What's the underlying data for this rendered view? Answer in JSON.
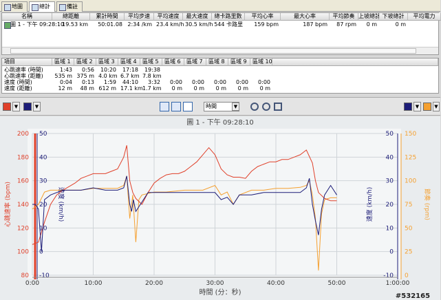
{
  "tabs": [
    "地圖",
    "總計",
    "備註"
  ],
  "summary": {
    "headers": [
      "名稱",
      "總距離",
      "累計時間",
      "平均步速",
      "平均速度",
      "最大速度",
      "總卡路里數",
      "平均心率",
      "最大心率",
      "平均節奏",
      "上坡總計",
      "下坡總計",
      "平均電力"
    ],
    "rows": [
      [
        "圖 1 - 下午 09:28:10",
        "19.53 km",
        "50:01.08",
        "2:34 /km",
        "23.4 km/h",
        "30.5 km/h",
        "544 卡路里",
        "159 bpm",
        "187 bpm",
        "87 rpm",
        "0 m",
        "0 m"
      ]
    ]
  },
  "zones": {
    "headers": [
      "項目",
      "區域 1",
      "區域 2",
      "區域 3",
      "區域 4",
      "區域 5",
      "區域 6",
      "區域 7",
      "區域 8",
      "區域 9",
      "區域 10"
    ],
    "rows": [
      [
        "心跳速率 (時間)",
        "1:43",
        "0:56",
        "10:20",
        "17:18",
        "19:38"
      ],
      [
        "心跳速率 (距離)",
        "535 m",
        "375 m",
        "4.0 km",
        "6.7 km",
        "7.8 km"
      ],
      [
        "速度 (時間)",
        "0:04",
        "0:13",
        "1:59",
        "44:10",
        "3:32",
        "0:00",
        "0:00",
        "0:00",
        "0:00",
        "0:00"
      ],
      [
        "速度 (距離)",
        "12 m",
        "48 m",
        "612 m",
        "17.1 km",
        "1.7 km",
        "0 m",
        "0 m",
        "0 m",
        "0 m",
        "0 m"
      ]
    ]
  },
  "toolbar": {
    "x_axis_mode": "時間"
  },
  "chart_data": {
    "type": "line",
    "title": "圖 1 - 下午 09:28:10",
    "x_label": "時間 (分：秒)",
    "y_label": "心跳速率 (bpm)",
    "y2_label": "速度 (km/h)",
    "y3_label": "節奏 (rpm)",
    "xlim": [
      0,
      60
    ],
    "xticks": [
      {
        "value": 0,
        "label": "0:00"
      },
      {
        "value": 10,
        "label": "10:00"
      },
      {
        "value": 20,
        "label": "20:00"
      },
      {
        "value": 30,
        "label": "30:00"
      },
      {
        "value": 40,
        "label": "40:00"
      },
      {
        "value": 50,
        "label": "50:00"
      },
      {
        "value": 60,
        "label": "1:00:00"
      }
    ],
    "ylim": [
      80,
      200
    ],
    "yticks": [
      80,
      100,
      120,
      140,
      160,
      180,
      200
    ],
    "y2lim": [
      -10,
      50
    ],
    "y2ticks": [
      -10,
      0,
      10,
      20,
      30,
      40,
      50
    ],
    "y3lim": [
      0,
      150
    ],
    "y3ticks": [
      0,
      25,
      50,
      75,
      100,
      125,
      150
    ],
    "grid": true,
    "series": [
      {
        "name": "心跳速率",
        "color": "#e0402a",
        "axis": "y",
        "x": [
          0,
          1,
          2,
          3,
          4,
          5,
          6,
          7,
          8,
          9,
          10,
          11,
          12,
          13,
          14,
          15,
          15.5,
          16,
          16.5,
          17,
          18,
          19,
          20,
          21,
          22,
          23,
          24,
          25,
          26,
          27,
          28,
          29,
          30,
          31,
          32,
          33,
          34,
          35,
          36,
          37,
          38,
          39,
          40,
          41,
          42,
          43,
          44,
          45,
          46,
          46.5,
          47,
          48,
          49,
          50
        ],
        "values": [
          106,
          108,
          125,
          140,
          148,
          152,
          155,
          158,
          162,
          164,
          166,
          166,
          166,
          168,
          170,
          180,
          190,
          160,
          150,
          145,
          140,
          150,
          158,
          162,
          165,
          166,
          166,
          168,
          172,
          176,
          182,
          188,
          182,
          170,
          165,
          163,
          163,
          162,
          168,
          172,
          174,
          176,
          176,
          178,
          178,
          180,
          182,
          186,
          175,
          160,
          150,
          145,
          143,
          143
        ]
      },
      {
        "name": "速度",
        "color": "#1c1c78",
        "axis": "y2",
        "x": [
          0,
          0.5,
          1,
          1.5,
          2,
          3,
          5,
          8,
          10,
          12,
          14,
          15,
          15.5,
          16,
          16.3,
          16.6,
          17,
          18,
          19,
          20,
          22,
          25,
          28,
          29,
          30,
          31,
          32,
          33,
          34,
          36,
          38,
          40,
          42,
          44,
          45,
          45.5,
          46,
          46.5,
          47,
          47.5,
          48,
          49,
          50
        ],
        "values": [
          20,
          20,
          18,
          0,
          22,
          24,
          26,
          26,
          27,
          26,
          26,
          27,
          32,
          20,
          17,
          22,
          17,
          21,
          25,
          25,
          25,
          25,
          25,
          25,
          25,
          22,
          23,
          20,
          24,
          24,
          25,
          25,
          25,
          25,
          27,
          31,
          20,
          13,
          7,
          18,
          24,
          28,
          24
        ]
      },
      {
        "name": "節奏",
        "color": "#f5a030",
        "axis": "y3",
        "x": [
          0,
          1,
          2,
          3,
          5,
          8,
          10,
          12,
          14,
          15,
          15.5,
          16,
          16.5,
          17,
          17.5,
          18,
          20,
          22,
          25,
          28,
          30,
          31,
          32,
          33,
          34,
          36,
          38,
          40,
          42,
          44,
          45,
          45.5,
          46,
          46.5,
          47,
          47.5,
          48,
          49,
          50
        ],
        "values": [
          70,
          75,
          88,
          90,
          90,
          90,
          92,
          92,
          92,
          95,
          105,
          60,
          85,
          35,
          80,
          85,
          88,
          88,
          90,
          90,
          95,
          85,
          88,
          75,
          85,
          90,
          90,
          92,
          92,
          93,
          95,
          100,
          85,
          60,
          5,
          65,
          80,
          82,
          82
        ]
      }
    ]
  },
  "watermark": "#532165"
}
